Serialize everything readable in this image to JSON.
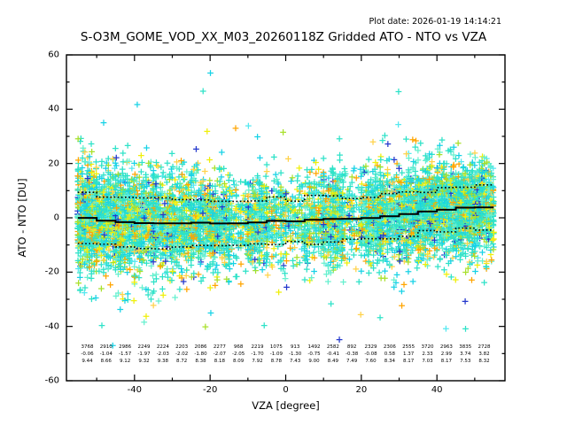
{
  "header": {
    "plot_date": "Plot date: 2026-01-19 14:14:21"
  },
  "chart_data": {
    "type": "scatter",
    "title": "S-O3M_GOME_VOD_XX_M03_20260118Z Gridded ATO - NTO vs VZA",
    "xlabel": "VZA [degree]",
    "ylabel": "ATO - NTO [DU]",
    "xlim": [
      -58,
      58
    ],
    "ylim": [
      -60,
      60
    ],
    "xticks": [
      -40,
      -20,
      0,
      20,
      40
    ],
    "yticks": [
      -60,
      -40,
      -20,
      0,
      20,
      40,
      60
    ],
    "grid": false,
    "legend": null,
    "marker": "+",
    "background": "#ffffff",
    "axis_color": "#000000",
    "scatter_style": {
      "palette": [
        "#2ee2c8",
        "#17d2e6",
        "#66f0cf",
        "#a8e02a",
        "#efef0a",
        "#ffa500",
        "#ffd24a",
        "#2438cc",
        "#55e8f0"
      ],
      "weights": [
        0.4,
        0.14,
        0.1,
        0.1,
        0.09,
        0.07,
        0.04,
        0.03,
        0.03
      ],
      "sample_divisor": 6,
      "marker_halfsize": 3.4,
      "outlier_fraction": 0.02,
      "outlier_scale": 2.6,
      "seed": 20260118
    },
    "overlays": {
      "mean_line": {
        "style": "solid",
        "color": "#000000",
        "description": "bin mean"
      },
      "std_lines": {
        "style": "dotted",
        "color": "#000000",
        "description": "bin mean plus/minus 1 std"
      }
    },
    "bin_stats": {
      "bin_width_deg": 5,
      "vza_centers": [
        -52.5,
        -47.5,
        -42.5,
        -37.5,
        -32.5,
        -27.5,
        -22.5,
        -17.5,
        -12.5,
        -7.5,
        -2.5,
        2.5,
        7.5,
        12.5,
        17.5,
        22.5,
        27.5,
        32.5,
        37.5,
        42.5,
        47.5,
        52.5
      ],
      "counts": [
        3768,
        2910,
        2986,
        2249,
        2224,
        2203,
        2086,
        2277,
        968,
        2219,
        1075,
        913,
        1492,
        2582,
        892,
        2329,
        2306,
        2555,
        3720,
        2963,
        3835,
        2728
      ],
      "means": [
        -0.06,
        -1.04,
        -1.57,
        -1.97,
        -2.03,
        -2.02,
        -1.8,
        -2.07,
        -2.05,
        -1.7,
        -1.09,
        -1.3,
        -0.75,
        -0.41,
        -0.38,
        -0.08,
        0.58,
        1.37,
        2.33,
        2.99,
        3.74,
        3.82
      ],
      "stds": [
        9.44,
        8.66,
        9.12,
        9.32,
        9.38,
        8.72,
        8.38,
        8.18,
        8.09,
        7.92,
        8.78,
        7.43,
        9.0,
        8.49,
        7.49,
        7.6,
        8.34,
        8.17,
        7.03,
        8.17,
        7.53,
        8.32
      ]
    }
  }
}
